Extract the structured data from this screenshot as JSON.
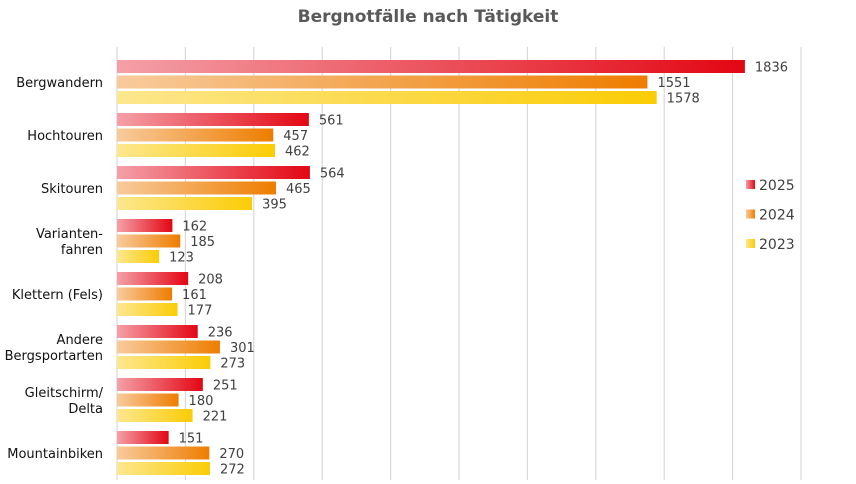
{
  "chart_data": {
    "type": "bar",
    "orientation": "horizontal",
    "title": "Bergnotfälle nach Tätigkeit",
    "xlabel": "",
    "ylabel": "",
    "xlim": [
      0,
      2000
    ],
    "grid": true,
    "legend_position": "right",
    "categories": [
      [
        "Bergwandern"
      ],
      [
        "Hochtouren"
      ],
      [
        "Skitouren"
      ],
      [
        "Varianten-",
        "fahren"
      ],
      [
        "Klettern (Fels)"
      ],
      [
        "Andere",
        "Bergsportarten"
      ],
      [
        "Gleitschirm/",
        "Delta"
      ],
      [
        "Mountainbiken"
      ]
    ],
    "series": [
      {
        "name": "2025",
        "color": "#e30613",
        "light": "#f4a0a8",
        "values": [
          1836,
          561,
          564,
          162,
          208,
          236,
          251,
          151
        ]
      },
      {
        "name": "2024",
        "color": "#ee7d00",
        "light": "#f8cb9c",
        "values": [
          1551,
          457,
          465,
          185,
          161,
          301,
          180,
          270
        ]
      },
      {
        "name": "2023",
        "color": "#fbcc05",
        "light": "#fde78e",
        "values": [
          1578,
          462,
          395,
          123,
          177,
          273,
          221,
          272
        ]
      }
    ]
  }
}
